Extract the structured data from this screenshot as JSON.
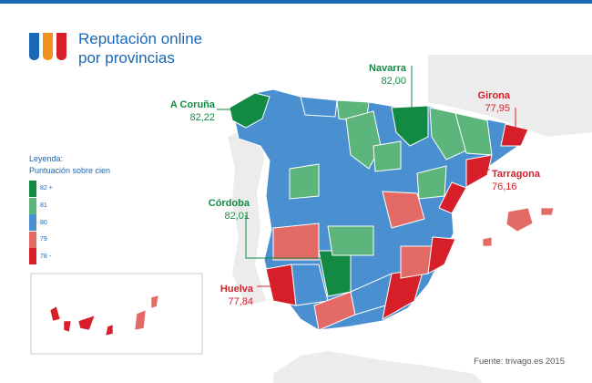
{
  "title": "Reputación online por provincias",
  "logo_colors": [
    "#1a67b5",
    "#f29120",
    "#d71f2a"
  ],
  "legend": {
    "title": "Leyenda:",
    "subtitle": "Puntuación sobre cien",
    "items": [
      {
        "label": "82 +",
        "color": "#138a44"
      },
      {
        "label": "81",
        "color": "#5cb57a"
      },
      {
        "label": "80",
        "color": "#4a8fd0"
      },
      {
        "label": "79",
        "color": "#e46a66"
      },
      {
        "label": "78 -",
        "color": "#d71f2a"
      }
    ]
  },
  "callouts": [
    {
      "name": "A Coruña",
      "value": "82,22",
      "color": "#138a44"
    },
    {
      "name": "Navarra",
      "value": "82,00",
      "color": "#138a44"
    },
    {
      "name": "Girona",
      "value": "77,95",
      "color": "#d71f2a"
    },
    {
      "name": "Tarragona",
      "value": "76,16",
      "color": "#d71f2a"
    },
    {
      "name": "Córdoba",
      "value": "82,01",
      "color": "#138a44"
    },
    {
      "name": "Huelva",
      "value": "77,84",
      "color": "#d71f2a"
    }
  ],
  "source": "Fuente: trivago.es 2015"
}
